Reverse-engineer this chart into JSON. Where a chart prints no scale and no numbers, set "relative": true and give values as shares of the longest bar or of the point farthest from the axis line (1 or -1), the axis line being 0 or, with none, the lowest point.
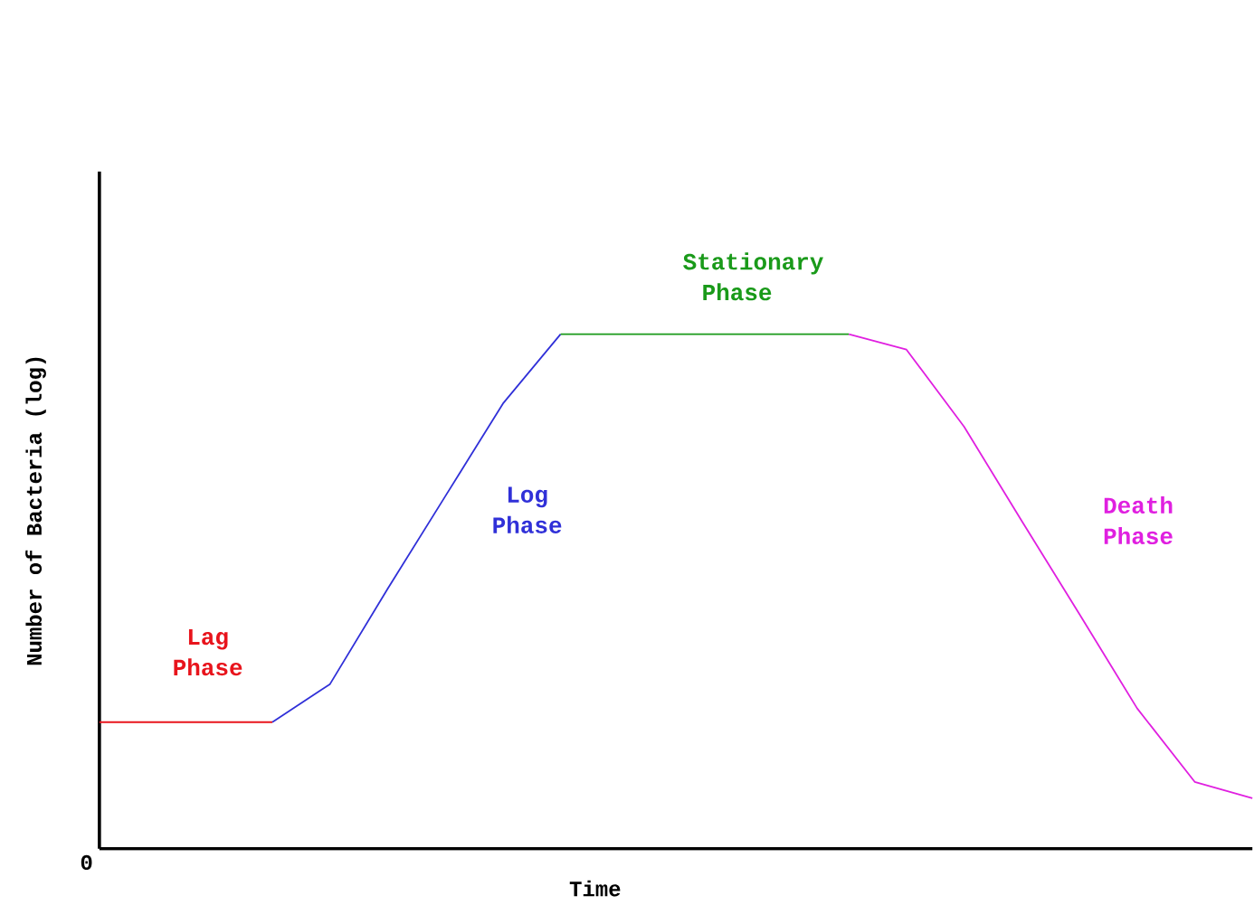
{
  "chart_data": {
    "type": "line",
    "relative": true,
    "xlabel": "Time",
    "ylabel": "Number of Bacteria (log)",
    "categories": [
      null,
      null,
      null,
      null,
      null,
      null,
      null,
      null,
      null,
      null,
      null,
      null,
      null,
      null,
      null,
      null,
      null,
      null,
      null,
      null,
      null
    ],
    "series": [
      {
        "color": "#e8141c",
        "values": [
          0.246,
          0.246,
          0.246,
          0.246,
          null,
          null,
          null,
          null,
          null,
          null,
          null,
          null,
          null,
          null,
          null,
          null,
          null,
          null,
          null,
          null,
          null
        ]
      },
      {
        "color": "#3030d8",
        "values": [
          null,
          null,
          null,
          0.246,
          0.32,
          0.505,
          0.685,
          0.865,
          1.0,
          null,
          null,
          null,
          null,
          null,
          null,
          null,
          null,
          null,
          null,
          null,
          null
        ]
      },
      {
        "color": "#1a9a1a",
        "values": [
          null,
          null,
          null,
          null,
          null,
          null,
          null,
          null,
          1.0,
          1.0,
          1.0,
          1.0,
          1.0,
          1.0,
          null,
          null,
          null,
          null,
          null,
          null,
          null
        ]
      },
      {
        "color": "#e020e0",
        "values": [
          null,
          null,
          null,
          null,
          null,
          null,
          null,
          null,
          null,
          null,
          null,
          null,
          null,
          1.0,
          0.97,
          0.82,
          0.637,
          0.456,
          0.273,
          0.13,
          0.098
        ]
      }
    ],
    "annotations": [
      "Lag Phase",
      "Log Phase",
      "Stationary Phase",
      "Death Phase",
      "0"
    ]
  }
}
